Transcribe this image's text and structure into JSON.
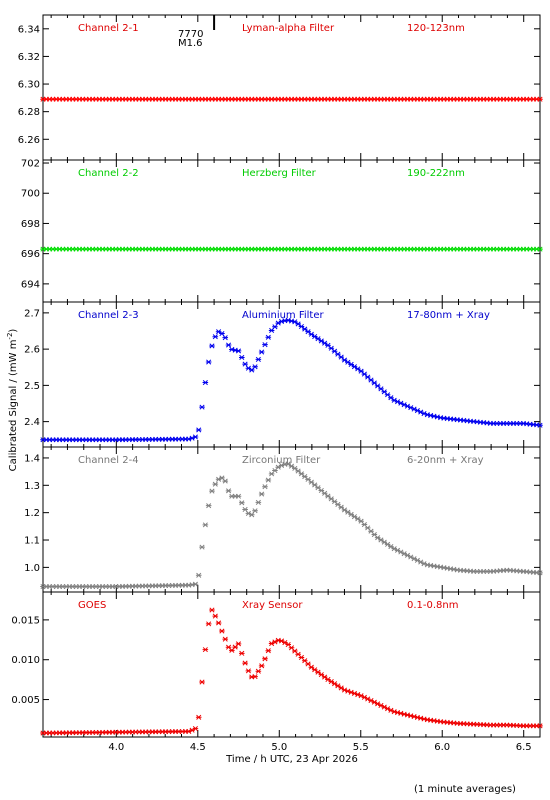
{
  "figure": {
    "ylabel": "Calibrated Signal / (mW m",
    "ylabel_sup": "-2",
    "ylabel_end": ")",
    "xlabel": "Time / h UTC, 23 Apr 2026",
    "footnote": "(1 minute averages)",
    "flare_number": "7770",
    "flare_class": "M1.6",
    "flare_time": 4.6
  },
  "chart_data": [
    {
      "type": "scatter",
      "labels": [
        "Channel 2-1",
        "Lyman-alpha Filter",
        "120-123nm"
      ],
      "label_color": "#dd0000",
      "marker_color": "#ff0000",
      "ylim": [
        6.245,
        6.35
      ],
      "yticks": [
        6.26,
        6.28,
        6.3,
        6.32,
        6.34
      ],
      "ytick_labels": [
        "6.26",
        "6.28",
        "6.30",
        "6.32",
        "6.34"
      ],
      "xlim": [
        3.55,
        6.6
      ],
      "profile": "flat",
      "base": 6.289
    },
    {
      "type": "scatter",
      "labels": [
        "Channel 2-2",
        "Herzberg Filter",
        "190-222nm"
      ],
      "label_color": "#00cc00",
      "marker_color": "#00dd00",
      "ylim": [
        692.8,
        702.2
      ],
      "yticks": [
        694,
        696,
        698,
        700,
        702
      ],
      "ytick_labels": [
        "694",
        "696",
        "698",
        "700",
        "702"
      ],
      "xlim": [
        3.55,
        6.6
      ],
      "profile": "flat",
      "base": 696.3
    },
    {
      "type": "scatter",
      "labels": [
        "Channel 2-3",
        "Aluminium Filter",
        "17-80nm + Xray"
      ],
      "label_color": "#0000cc",
      "marker_color": "#0000ee",
      "ylim": [
        2.33,
        2.73
      ],
      "yticks": [
        2.4,
        2.5,
        2.6,
        2.7
      ],
      "ytick_labels": [
        "2.4",
        "2.5",
        "2.6",
        "2.7"
      ],
      "xlim": [
        3.55,
        6.6
      ],
      "profile": "flare",
      "points": [
        [
          3.55,
          2.35
        ],
        [
          4.0,
          2.35
        ],
        [
          4.45,
          2.352
        ],
        [
          4.5,
          2.36
        ],
        [
          4.52,
          2.42
        ],
        [
          4.55,
          2.52
        ],
        [
          4.58,
          2.6
        ],
        [
          4.62,
          2.65
        ],
        [
          4.66,
          2.64
        ],
        [
          4.7,
          2.6
        ],
        [
          4.75,
          2.595
        ],
        [
          4.8,
          2.55
        ],
        [
          4.84,
          2.54
        ],
        [
          4.9,
          2.6
        ],
        [
          4.95,
          2.65
        ],
        [
          5.0,
          2.675
        ],
        [
          5.05,
          2.68
        ],
        [
          5.1,
          2.675
        ],
        [
          5.2,
          2.64
        ],
        [
          5.3,
          2.61
        ],
        [
          5.4,
          2.57
        ],
        [
          5.5,
          2.54
        ],
        [
          5.6,
          2.5
        ],
        [
          5.7,
          2.46
        ],
        [
          5.8,
          2.44
        ],
        [
          5.9,
          2.42
        ],
        [
          6.0,
          2.41
        ],
        [
          6.1,
          2.405
        ],
        [
          6.2,
          2.4
        ],
        [
          6.3,
          2.395
        ],
        [
          6.4,
          2.395
        ],
        [
          6.5,
          2.395
        ],
        [
          6.6,
          2.39
        ]
      ]
    },
    {
      "type": "scatter",
      "labels": [
        "Channel 2-4",
        "Zirconium Filter",
        "6-20nm + Xray"
      ],
      "label_color": "#777777",
      "marker_color": "#808080",
      "ylim": [
        0.91,
        1.44
      ],
      "yticks": [
        1.0,
        1.1,
        1.2,
        1.3,
        1.4
      ],
      "ytick_labels": [
        "1.0",
        "1.1",
        "1.2",
        "1.3",
        "1.4"
      ],
      "xlim": [
        3.55,
        6.6
      ],
      "profile": "flare",
      "points": [
        [
          3.55,
          0.93
        ],
        [
          4.0,
          0.93
        ],
        [
          4.45,
          0.935
        ],
        [
          4.5,
          0.94
        ],
        [
          4.52,
          1.05
        ],
        [
          4.55,
          1.17
        ],
        [
          4.58,
          1.27
        ],
        [
          4.62,
          1.32
        ],
        [
          4.66,
          1.33
        ],
        [
          4.7,
          1.26
        ],
        [
          4.75,
          1.26
        ],
        [
          4.8,
          1.2
        ],
        [
          4.84,
          1.19
        ],
        [
          4.9,
          1.28
        ],
        [
          4.95,
          1.34
        ],
        [
          5.0,
          1.37
        ],
        [
          5.05,
          1.38
        ],
        [
          5.1,
          1.36
        ],
        [
          5.2,
          1.31
        ],
        [
          5.3,
          1.26
        ],
        [
          5.4,
          1.21
        ],
        [
          5.5,
          1.17
        ],
        [
          5.6,
          1.11
        ],
        [
          5.7,
          1.07
        ],
        [
          5.8,
          1.04
        ],
        [
          5.9,
          1.01
        ],
        [
          6.0,
          1.0
        ],
        [
          6.1,
          0.99
        ],
        [
          6.2,
          0.985
        ],
        [
          6.3,
          0.985
        ],
        [
          6.4,
          0.99
        ],
        [
          6.5,
          0.985
        ],
        [
          6.6,
          0.98
        ]
      ]
    },
    {
      "type": "scatter",
      "labels": [
        "GOES",
        "Xray Sensor",
        "0.1-0.8nm"
      ],
      "label_color": "#dd0000",
      "marker_color": "#ee0000",
      "ylim": [
        0.0003,
        0.0185
      ],
      "yticks": [
        0.005,
        0.01,
        0.015
      ],
      "ytick_labels": [
        "0.005",
        "0.010",
        "0.015"
      ],
      "xlim": [
        3.55,
        6.6
      ],
      "profile": "flare",
      "points": [
        [
          3.55,
          0.0008
        ],
        [
          4.0,
          0.0009
        ],
        [
          4.45,
          0.001
        ],
        [
          4.5,
          0.0015
        ],
        [
          4.52,
          0.006
        ],
        [
          4.55,
          0.012
        ],
        [
          4.58,
          0.0165
        ],
        [
          4.62,
          0.015
        ],
        [
          4.66,
          0.013
        ],
        [
          4.7,
          0.011
        ],
        [
          4.75,
          0.012
        ],
        [
          4.8,
          0.009
        ],
        [
          4.84,
          0.0075
        ],
        [
          4.9,
          0.0095
        ],
        [
          4.95,
          0.012
        ],
        [
          5.0,
          0.0125
        ],
        [
          5.05,
          0.012
        ],
        [
          5.1,
          0.011
        ],
        [
          5.2,
          0.009
        ],
        [
          5.3,
          0.0075
        ],
        [
          5.4,
          0.0062
        ],
        [
          5.5,
          0.0055
        ],
        [
          5.6,
          0.0045
        ],
        [
          5.7,
          0.0035
        ],
        [
          5.8,
          0.003
        ],
        [
          5.9,
          0.0025
        ],
        [
          6.0,
          0.0022
        ],
        [
          6.1,
          0.002
        ],
        [
          6.2,
          0.0019
        ],
        [
          6.3,
          0.0018
        ],
        [
          6.4,
          0.0018
        ],
        [
          6.5,
          0.0017
        ],
        [
          6.6,
          0.0017
        ]
      ]
    }
  ],
  "x_axis": {
    "xlim": [
      3.55,
      6.6
    ],
    "xticks": [
      4.0,
      4.5,
      5.0,
      5.5,
      6.0,
      6.5
    ],
    "xtick_labels": [
      "4.0",
      "4.5",
      "5.0",
      "5.5",
      "6.0",
      "6.5"
    ]
  }
}
